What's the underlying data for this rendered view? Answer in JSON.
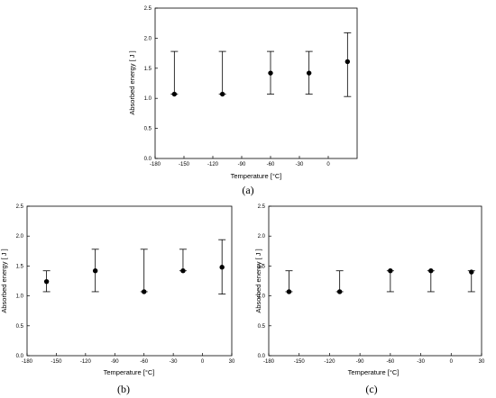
{
  "chart_data": [
    {
      "type": "scatter",
      "panel_label": "(a)",
      "xlabel": "Temperature [°C]",
      "ylabel": "Absorbed energy [ J ]",
      "xlim": [
        -180,
        30
      ],
      "ylim": [
        0,
        2.5
      ],
      "xticks": [
        "-180",
        "-150",
        "-120",
        "-90",
        "-60",
        "-30",
        "0"
      ],
      "yticks": [
        "0.0",
        "0.5",
        "1.0",
        "1.5",
        "2.0",
        "2.5"
      ],
      "points": [
        {
          "x": -160,
          "y": 1.07,
          "ylow": 1.07,
          "yhigh": 1.78
        },
        {
          "x": -110,
          "y": 1.07,
          "ylow": 1.07,
          "yhigh": 1.78
        },
        {
          "x": -60,
          "y": 1.42,
          "ylow": 1.07,
          "yhigh": 1.78
        },
        {
          "x": -20,
          "y": 1.42,
          "ylow": 1.07,
          "yhigh": 1.78
        },
        {
          "x": 20,
          "y": 1.61,
          "ylow": 1.03,
          "yhigh": 2.09
        }
      ]
    },
    {
      "type": "scatter",
      "panel_label": "(b)",
      "xlabel": "Temperature [°C]",
      "ylabel": "Absorbed energy [ J ]",
      "xlim": [
        -180,
        30
      ],
      "ylim": [
        0,
        2.5
      ],
      "xticks": [
        "-180",
        "-150",
        "-120",
        "-90",
        "-60",
        "-30",
        "0",
        "30"
      ],
      "yticks": [
        "0.0",
        "0.5",
        "1.0",
        "1.5",
        "2.0",
        "2.5"
      ],
      "points": [
        {
          "x": -160,
          "y": 1.24,
          "ylow": 1.07,
          "yhigh": 1.42
        },
        {
          "x": -110,
          "y": 1.42,
          "ylow": 1.07,
          "yhigh": 1.78
        },
        {
          "x": -60,
          "y": 1.07,
          "ylow": 1.07,
          "yhigh": 1.78
        },
        {
          "x": -20,
          "y": 1.42,
          "ylow": 1.42,
          "yhigh": 1.78
        },
        {
          "x": 20,
          "y": 1.48,
          "ylow": 1.03,
          "yhigh": 1.94
        }
      ]
    },
    {
      "type": "scatter",
      "panel_label": "(c)",
      "xlabel": "Temperature [°C]",
      "ylabel": "Absorbed energy [ J ]",
      "xlim": [
        -180,
        30
      ],
      "ylim": [
        0,
        2.5
      ],
      "xticks": [
        "-180",
        "-150",
        "-120",
        "-90",
        "-60",
        "-30",
        "0",
        "30"
      ],
      "yticks": [
        "0.0",
        "0.5",
        "1.0",
        "1.5",
        "2.0",
        "2.5"
      ],
      "points": [
        {
          "x": -160,
          "y": 1.07,
          "ylow": 1.07,
          "yhigh": 1.42
        },
        {
          "x": -110,
          "y": 1.07,
          "ylow": 1.07,
          "yhigh": 1.42
        },
        {
          "x": -60,
          "y": 1.42,
          "ylow": 1.07,
          "yhigh": 1.42
        },
        {
          "x": -20,
          "y": 1.42,
          "ylow": 1.07,
          "yhigh": 1.42
        },
        {
          "x": 20,
          "y": 1.4,
          "ylow": 1.07,
          "yhigh": 1.42
        }
      ]
    }
  ]
}
